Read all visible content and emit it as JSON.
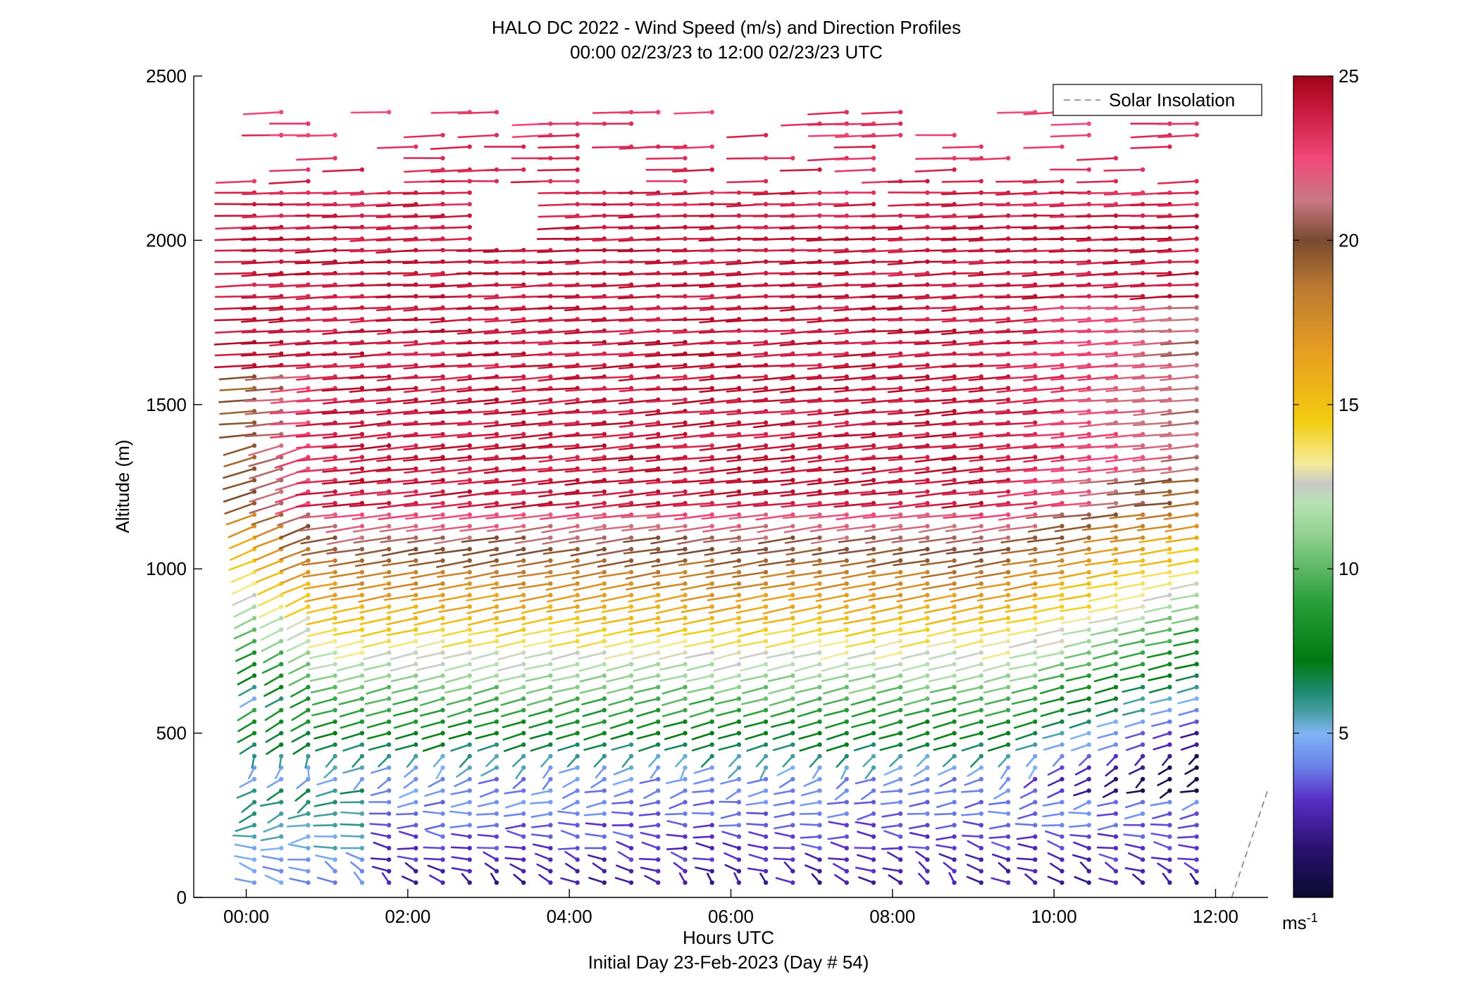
{
  "chart_data": {
    "type": "wind-barb-profile",
    "title": "HALO DC 2022 - Wind Speed (m/s) and Direction Profiles",
    "subtitle": "00:00 02/23/23 to 12:00 02/23/23  UTC",
    "xlabel": "Hours UTC",
    "xlabel2": "Initial Day 23-Feb-2023 (Day # 54)",
    "ylabel": "Altitude (m)",
    "xlim": [
      -0.65,
      12.65
    ],
    "ylim": [
      0,
      2500
    ],
    "x_ticks": [
      0,
      2,
      4,
      6,
      8,
      10,
      12
    ],
    "x_tick_labels": [
      "00:00",
      "02:00",
      "04:00",
      "06:00",
      "08:00",
      "10:00",
      "12:00"
    ],
    "y_ticks": [
      0,
      500,
      1000,
      1500,
      2000,
      2500
    ],
    "y_tick_labels": [
      "0",
      "500",
      "1000",
      "1500",
      "2000",
      "2500"
    ],
    "legend": {
      "label": "Solar Insolation",
      "position": "top-right",
      "line_style": "dashed",
      "color": "#808080"
    },
    "solar_insolation_line": {
      "x": [
        12.2,
        12.65
      ],
      "y": [
        0,
        330
      ]
    },
    "colorbar": {
      "range": [
        0,
        25
      ],
      "ticks": [
        5,
        10,
        15,
        20,
        25
      ],
      "tick_labels": [
        "5",
        "10",
        "15",
        "20",
        "25"
      ],
      "unit_label": "ms-1",
      "unit_base": "ms",
      "unit_exp": "-1",
      "stops": [
        {
          "v": 0,
          "color": "#0c0a30"
        },
        {
          "v": 1.5,
          "color": "#2a1270"
        },
        {
          "v": 3,
          "color": "#5a2fc8"
        },
        {
          "v": 4,
          "color": "#6a82e8"
        },
        {
          "v": 5,
          "color": "#7fb4f4"
        },
        {
          "v": 5.6,
          "color": "#4aa0a8"
        },
        {
          "v": 6.3,
          "color": "#1e8a6e"
        },
        {
          "v": 7.2,
          "color": "#007a10"
        },
        {
          "v": 9,
          "color": "#2a9e3a"
        },
        {
          "v": 11,
          "color": "#8fd08e"
        },
        {
          "v": 12,
          "color": "#b6e2b2"
        },
        {
          "v": 12.6,
          "color": "#c8c8c8"
        },
        {
          "v": 13.2,
          "color": "#f4ec9a"
        },
        {
          "v": 14.5,
          "color": "#f2cc10"
        },
        {
          "v": 16.5,
          "color": "#e8a020"
        },
        {
          "v": 18.5,
          "color": "#bd7a30"
        },
        {
          "v": 20,
          "color": "#7a4a30"
        },
        {
          "v": 21.2,
          "color": "#c87882"
        },
        {
          "v": 22.5,
          "color": "#f0487a"
        },
        {
          "v": 24,
          "color": "#c8183a"
        },
        {
          "v": 25,
          "color": "#9e0418"
        }
      ]
    },
    "profiles": {
      "time_start_h": 0.1,
      "time_step_h": 0.3333,
      "count": 36,
      "altitude_start_m": 45,
      "altitude_step_m": 35,
      "levels": 68,
      "notes": "Wind barbs: each stick drawn from its point in the direction of the wind, coloured by speed. Low-level (<400 m) winds light (1-6 m/s) and variable; jet of 22-25 m/s from ~1200-2100 m; upper echoes sparse above ~2200 m."
    }
  }
}
